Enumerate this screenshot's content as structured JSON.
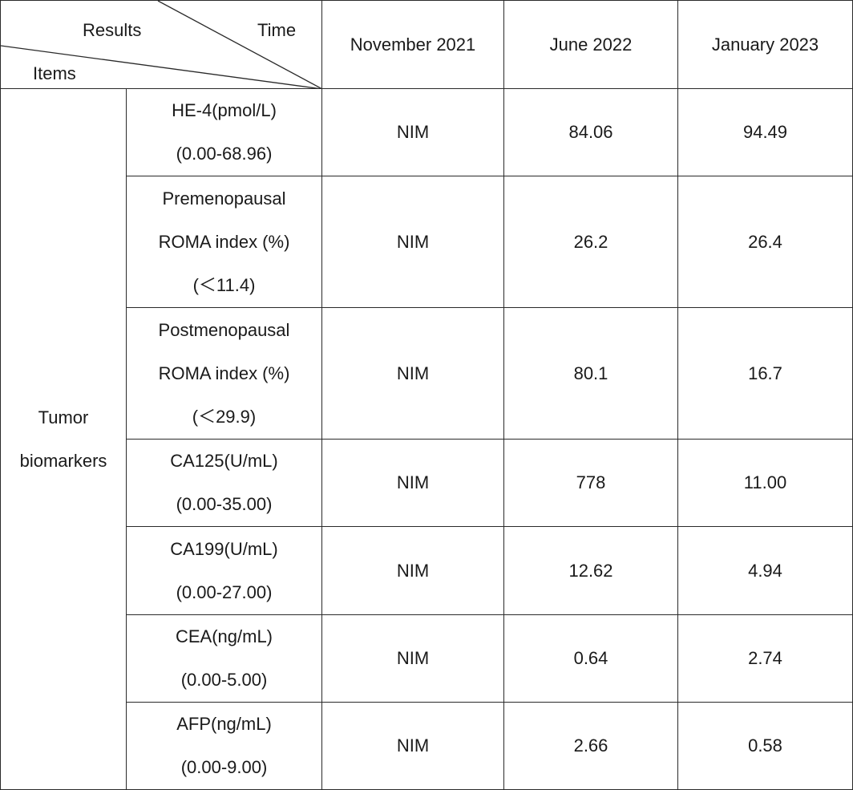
{
  "header": {
    "results_label": "Results",
    "time_label": "Time",
    "items_label": "Items",
    "columns": [
      "November 2021",
      "June 2022",
      "January 2023"
    ]
  },
  "group": {
    "label_line1": "Tumor",
    "label_line2": "biomarkers"
  },
  "rows": [
    {
      "item_lines": [
        "HE-4(pmol/L)",
        "(0.00-68.96)"
      ],
      "values": [
        "NIM",
        "84.06",
        "94.49"
      ]
    },
    {
      "item_lines": [
        "Premenopausal",
        "ROMA index (%)",
        "(＜11.4)"
      ],
      "values": [
        "NIM",
        "26.2",
        "26.4"
      ]
    },
    {
      "item_lines": [
        "Postmenopausal",
        "ROMA index (%)",
        "(＜29.9)"
      ],
      "values": [
        "NIM",
        "80.1",
        "16.7"
      ]
    },
    {
      "item_lines": [
        "CA125(U/mL)",
        "(0.00-35.00)"
      ],
      "values": [
        "NIM",
        "778",
        "11.00"
      ]
    },
    {
      "item_lines": [
        "CA199(U/mL)",
        "(0.00-27.00)"
      ],
      "values": [
        "NIM",
        "12.62",
        "4.94"
      ]
    },
    {
      "item_lines": [
        "CEA(ng/mL)",
        "(0.00-5.00)"
      ],
      "values": [
        "NIM",
        "0.64",
        "2.74"
      ]
    },
    {
      "item_lines": [
        "AFP(ng/mL)",
        "(0.00-9.00)"
      ],
      "values": [
        "NIM",
        "2.66",
        "0.58"
      ]
    }
  ]
}
